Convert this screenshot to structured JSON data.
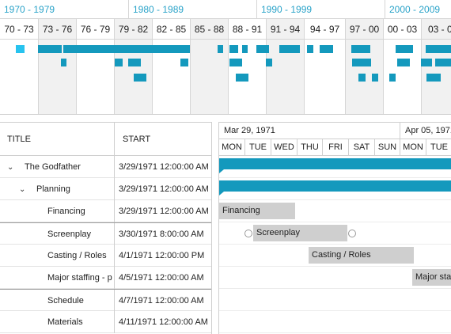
{
  "overview": {
    "decades": [
      "1970 - 1979",
      "1980 - 1989",
      "1990 - 1999",
      "2000 - 2009"
    ],
    "periods": [
      "70 - 73",
      "73 - 76",
      "76 - 79",
      "79 - 82",
      "82 - 85",
      "85 - 88",
      "88 - 91",
      "91 - 94",
      "94 - 97",
      "97 - 00",
      "00 - 03",
      "03 - 0"
    ],
    "selected_period": "70 - 73"
  },
  "grid": {
    "columns": [
      "TITLE",
      "START"
    ],
    "rows": [
      {
        "title": "The Godfather",
        "start": "3/29/1971 12:00:00 AM"
      },
      {
        "title": "Planning",
        "start": "3/29/1971 12:00:00 AM"
      },
      {
        "title": "Financing",
        "start": "3/29/1971 12:00:00 AM"
      },
      {
        "title": "Screenplay",
        "start": "3/30/1971 8:00:00 AM"
      },
      {
        "title": "Casting / Roles",
        "start": "4/1/1971 12:00:00 PM"
      },
      {
        "title": "Major staffing - p",
        "start": "4/5/1971 12:00:00 AM"
      },
      {
        "title": "Schedule",
        "start": "4/7/1971 12:00:00 AM"
      },
      {
        "title": "Materials",
        "start": "4/11/1971 12:00:00 AM"
      }
    ]
  },
  "gantt": {
    "weeks": [
      "Mar 29, 1971",
      "Apr 05, 1971"
    ],
    "days": [
      "MON",
      "TUE",
      "WED",
      "THU",
      "FRI",
      "SAT",
      "SUN",
      "MON",
      "TUE"
    ],
    "bars": [
      {
        "label": "Financing"
      },
      {
        "label": "Screenplay"
      },
      {
        "label": "Casting / Roles"
      },
      {
        "label": "Major sta"
      }
    ]
  },
  "colors": {
    "accent": "#1499bd",
    "accent_light": "#27c3ef",
    "decade_text": "#2aa3c9",
    "task_bar": "#cfcfcf"
  }
}
